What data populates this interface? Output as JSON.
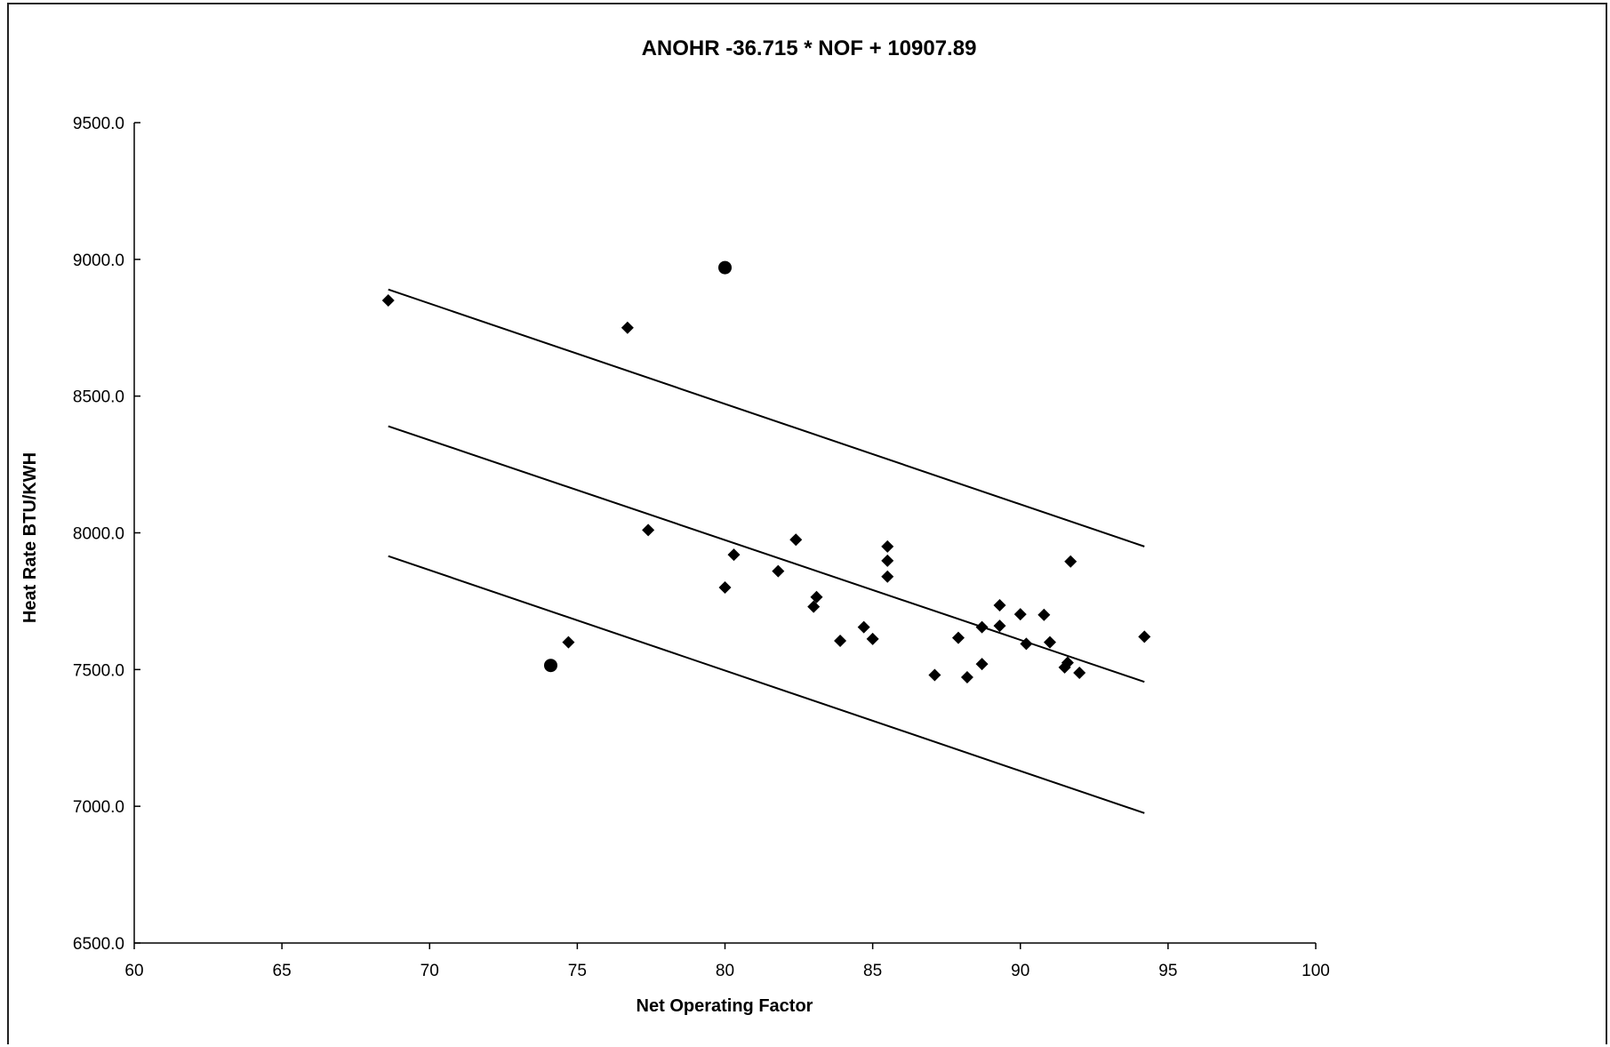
{
  "chart_data": {
    "type": "scatter",
    "title": "ANOHR -36.715 * NOF + 10907.89",
    "xlabel": "Net Operating Factor",
    "ylabel": "Heat Rate BTU/KWH",
    "xlim": [
      60,
      100
    ],
    "ylim": [
      6500,
      9500
    ],
    "xticks": [
      "60",
      "65",
      "70",
      "75",
      "80",
      "85",
      "90",
      "95",
      "100"
    ],
    "yticks": [
      "6500.0",
      "7000.0",
      "7500.0",
      "8000.0",
      "8500.0",
      "9000.0",
      "9500.0"
    ],
    "grid": false,
    "legend": "none",
    "points": [
      {
        "x": 68.6,
        "y": 8850
      },
      {
        "x": 74.7,
        "y": 7600
      },
      {
        "x": 76.7,
        "y": 8750
      },
      {
        "x": 77.4,
        "y": 8010
      },
      {
        "x": 80.0,
        "y": 7800
      },
      {
        "x": 80.3,
        "y": 7920
      },
      {
        "x": 81.8,
        "y": 7860
      },
      {
        "x": 82.4,
        "y": 7975
      },
      {
        "x": 83.0,
        "y": 7730
      },
      {
        "x": 83.1,
        "y": 7765
      },
      {
        "x": 83.9,
        "y": 7605
      },
      {
        "x": 84.7,
        "y": 7655
      },
      {
        "x": 85.0,
        "y": 7612
      },
      {
        "x": 85.5,
        "y": 7950
      },
      {
        "x": 85.5,
        "y": 7898
      },
      {
        "x": 85.5,
        "y": 7840
      },
      {
        "x": 87.1,
        "y": 7480
      },
      {
        "x": 87.9,
        "y": 7616
      },
      {
        "x": 88.2,
        "y": 7472
      },
      {
        "x": 88.7,
        "y": 7520
      },
      {
        "x": 88.7,
        "y": 7655
      },
      {
        "x": 89.3,
        "y": 7735
      },
      {
        "x": 89.3,
        "y": 7660
      },
      {
        "x": 90.0,
        "y": 7702
      },
      {
        "x": 90.2,
        "y": 7594
      },
      {
        "x": 90.8,
        "y": 7700
      },
      {
        "x": 91.0,
        "y": 7600
      },
      {
        "x": 91.5,
        "y": 7508
      },
      {
        "x": 91.6,
        "y": 7525
      },
      {
        "x": 91.7,
        "y": 7895
      },
      {
        "x": 92.0,
        "y": 7488
      },
      {
        "x": 94.2,
        "y": 7620
      }
    ],
    "outliers": [
      {
        "x": 80.0,
        "y": 8970
      },
      {
        "x": 74.1,
        "y": 7515
      }
    ],
    "lines": [
      {
        "x": [
          68.6,
          94.2
        ],
        "y": [
          8890,
          7950
        ]
      },
      {
        "x": [
          68.6,
          94.2
        ],
        "y": [
          8390,
          7455
        ]
      },
      {
        "x": [
          68.6,
          94.2
        ],
        "y": [
          7915,
          6975
        ]
      }
    ],
    "color": "#000000"
  }
}
